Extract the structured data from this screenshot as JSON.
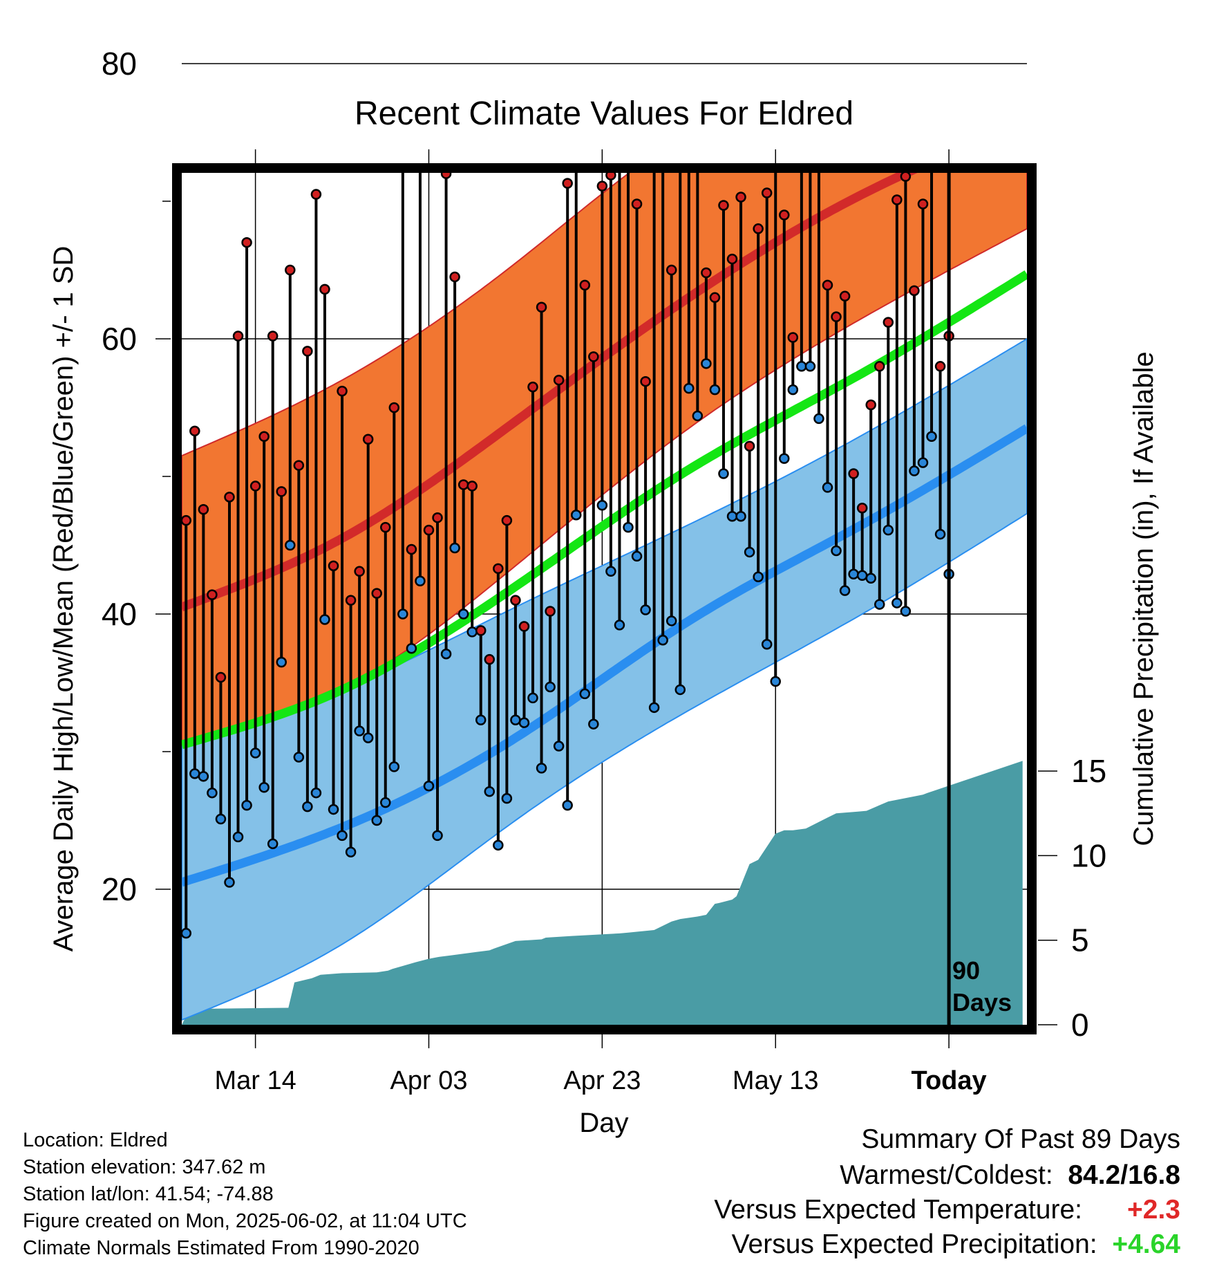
{
  "chart_data": {
    "type": "line",
    "title": "Recent Climate Values For Eldred",
    "xlabel": "Day",
    "ylabel": "Average Daily High/Low/Mean (Red/Blue/Green) +/- 1 SD",
    "y2label": "Cumulative Precipitation (in), If Available",
    "ylim": [
      6,
      90
    ],
    "y2lim": [
      0,
      30
    ],
    "yticks": [
      20,
      40,
      60,
      80
    ],
    "y2ticks": [
      0,
      5,
      10,
      15
    ],
    "xrange_days": [
      -88.5,
      9
    ],
    "xticks": [
      {
        "day": -80,
        "label": "Mar 14"
      },
      {
        "day": -60,
        "label": "Apr 03"
      },
      {
        "day": -40,
        "label": "Apr 23"
      },
      {
        "day": -20,
        "label": "May 13"
      },
      {
        "day": 0,
        "label": "Today"
      }
    ],
    "today_marker_label": [
      "90",
      "Days"
    ],
    "grid": true,
    "normals": {
      "days": [
        -88.5,
        -70,
        -50,
        -30,
        -10,
        9
      ],
      "high_mean": [
        40.5,
        45.5,
        54,
        63,
        70.5,
        75.8
      ],
      "high_upper": [
        51.5,
        57,
        65.5,
        75,
        80,
        83.2
      ],
      "high_lower": [
        30.5,
        34.5,
        43.5,
        53.5,
        61.5,
        68
      ],
      "mean": [
        30.5,
        34.5,
        42,
        50.5,
        57.5,
        64.7
      ],
      "low_mean": [
        20.5,
        24.5,
        31,
        39.5,
        46.5,
        53.5
      ],
      "low_upper": [
        30.5,
        34.5,
        40.5,
        46.5,
        53,
        60
      ],
      "low_lower": [
        10.5,
        16,
        25,
        33,
        40,
        47.3
      ]
    },
    "daily": {
      "start_day": -88,
      "high": [
        46.8,
        53.3,
        47.6,
        41.4,
        35.4,
        48.5,
        60.2,
        67,
        49.3,
        52.9,
        60.2,
        48.9,
        65,
        50.8,
        59.1,
        70.5,
        63.6,
        43.5,
        56.2,
        41,
        43.1,
        52.7,
        41.5,
        46.3,
        55,
        73,
        44.7,
        72.8,
        46.1,
        47,
        72,
        64.5,
        49.4,
        49.3,
        38.8,
        36.7,
        43.3,
        46.8,
        41,
        39.1,
        56.5,
        62.3,
        40.2,
        57,
        71.3,
        84.2,
        63.9,
        58.7,
        71.1,
        71.9,
        81.5,
        78.6,
        69.8,
        56.9,
        73.1,
        81.1,
        65,
        76.6,
        80.5,
        73.2,
        64.8,
        63,
        69.7,
        65.8,
        70.3,
        52.2,
        68,
        70.6,
        79.8,
        69,
        60.1,
        73.2,
        76.5,
        81.4,
        63.9,
        61.6,
        63.1,
        50.2,
        47.7,
        55.2,
        58,
        61.2,
        70.1,
        71.8,
        63.5,
        69.8,
        76.8,
        58,
        60.2
      ],
      "low": [
        16.8,
        28.4,
        28.2,
        27,
        25.1,
        20.5,
        23.8,
        26.1,
        29.9,
        27.4,
        23.3,
        36.5,
        45,
        29.6,
        26,
        27,
        39.6,
        25.8,
        23.9,
        22.7,
        31.5,
        31,
        25,
        26.3,
        28.9,
        40,
        37.5,
        42.4,
        27.5,
        23.9,
        37.1,
        44.8,
        40,
        38.7,
        32.3,
        27.1,
        23.2,
        26.6,
        32.3,
        32.1,
        33.9,
        28.8,
        34.7,
        30.4,
        26.1,
        47.2,
        34.2,
        32,
        47.9,
        43.1,
        39.2,
        46.3,
        44.2,
        40.3,
        33.2,
        38.1,
        39.5,
        34.5,
        56.4,
        54.4,
        58.2,
        56.3,
        50.2,
        47.1,
        47.1,
        44.5,
        42.7,
        37.8,
        35.1,
        51.3,
        56.3,
        58,
        58,
        54.2,
        49.2,
        44.6,
        41.7,
        42.9,
        42.8,
        42.6,
        40.7,
        46.1,
        40.8,
        40.2,
        50.4,
        51,
        52.9,
        45.8,
        42.9
      ]
    },
    "cumulative_precip": {
      "days": [
        -88.5,
        -88,
        -87.5,
        -85,
        -76.2,
        -75.5,
        -73.5,
        -72.5,
        -70,
        -66,
        -64.7,
        -64.2,
        -61.5,
        -60,
        -59,
        -57.5,
        -54.5,
        -53,
        -52.5,
        -50,
        -47,
        -46.5,
        -43.5,
        -38,
        -37,
        -34,
        -32,
        -31,
        -29,
        -28,
        -27,
        -26.5,
        -25,
        -24.5,
        -23,
        -22,
        -20,
        -19,
        -18,
        -16.5,
        -14,
        -13,
        -10.5,
        -9.5,
        -7,
        -4,
        -3,
        -2.5,
        8.5
      ],
      "values": [
        0,
        0.5,
        0.85,
        0.95,
        1,
        2.5,
        2.75,
        2.95,
        3.05,
        3.1,
        3.2,
        3.3,
        3.7,
        3.9,
        4,
        4.1,
        4.3,
        4.4,
        4.5,
        4.95,
        5.05,
        5.15,
        5.25,
        5.4,
        5.45,
        5.6,
        6.1,
        6.25,
        6.4,
        6.5,
        7.15,
        7.2,
        7.4,
        7.6,
        9.5,
        9.75,
        11.3,
        11.5,
        11.5,
        11.6,
        12.25,
        12.5,
        12.6,
        12.65,
        13.2,
        13.5,
        13.6,
        13.7,
        15.6
      ],
      "values_step_from": 0,
      "final_step": {
        "day": -2.5,
        "value": 15.6
      }
    }
  },
  "info": [
    "Location: Eldred",
    "Station elevation: 347.62 m",
    "Station lat/lon: 41.54; -74.88",
    "Figure created on Mon, 2025-06-02, at 11:04 UTC",
    "Climate Normals Estimated From 1990-2020"
  ],
  "summary": {
    "title": "Summary Of Past 89 Days",
    "warmest_label": "Warmest/Coldest:",
    "warmest_value": "84.2/16.8",
    "temp_label": "Versus Expected Temperature:",
    "temp_value": "+2.3",
    "precip_label": "Versus Expected Precipitation:",
    "precip_value": "+4.64"
  },
  "colors": {
    "high_band": "#f27631",
    "high_line": "#d22a2a",
    "low_band": "#84c1e8",
    "low_line": "#2a8ef0",
    "mean_line": "#14e614",
    "precip": "#4a9ca5",
    "high_dot": "#d02020",
    "low_dot": "#2a86d8"
  }
}
